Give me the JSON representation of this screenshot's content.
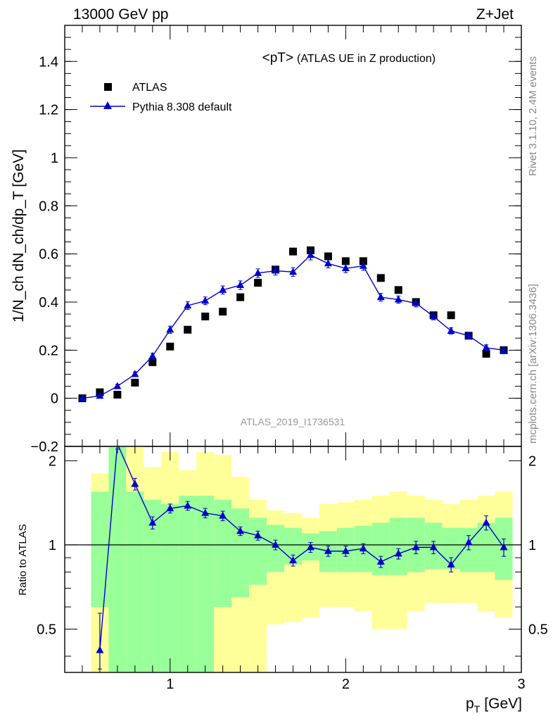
{
  "header": {
    "left": "13000 GeV pp",
    "right": "Z+Jet"
  },
  "side_labels": {
    "rivet": "Rivet 3.1.10,  2.4M events",
    "mcplots": "mcplots.cern.ch [arXiv:1306.3436]"
  },
  "analysis_id": "ATLAS_2019_I1736531",
  "colors": {
    "mc": "#0000cc",
    "band_inner": "#99ff99",
    "band_outer": "#ffff99",
    "data": "#000000"
  },
  "chart_data": [
    {
      "type": "scatter",
      "title_main": "<pT>",
      "title_sub": "(ATLAS UE in Z production)",
      "xlabel": "p",
      "xlabel_sub": "T",
      "xlabel_unit": "[GeV]",
      "ylabel": "1/N_ch dN_ch/dp_T [GeV]",
      "xlim": [
        0.4,
        3.0
      ],
      "ylim": [
        -0.2,
        1.55
      ],
      "yticks": [
        -0.2,
        0,
        0.2,
        0.4,
        0.6,
        0.8,
        1,
        1.2,
        1.4
      ],
      "ytick_labels": [
        "−0.2",
        "0",
        "0.2",
        "0.4",
        "0.6",
        "0.8",
        "1",
        "1.2",
        "1.4"
      ],
      "xticks": [
        1,
        2,
        3
      ],
      "legend_position": "top-left",
      "x": [
        0.5,
        0.6,
        0.7,
        0.8,
        0.9,
        1.0,
        1.1,
        1.2,
        1.3,
        1.4,
        1.5,
        1.6,
        1.7,
        1.8,
        1.9,
        2.0,
        2.1,
        2.2,
        2.3,
        2.4,
        2.5,
        2.6,
        2.7,
        2.8,
        2.9
      ],
      "series": [
        {
          "name": "ATLAS",
          "marker": "square",
          "values": [
            0.0,
            0.025,
            0.015,
            0.065,
            0.15,
            0.215,
            0.285,
            0.34,
            0.36,
            0.42,
            0.48,
            0.535,
            0.61,
            0.615,
            0.59,
            0.57,
            0.57,
            0.5,
            0.45,
            0.4,
            0.345,
            0.345,
            0.26,
            0.185,
            0.2
          ]
        },
        {
          "name": "Pythia 8.308 default",
          "marker": "triangle",
          "values": [
            0.0,
            0.01,
            0.05,
            0.1,
            0.175,
            0.285,
            0.385,
            0.405,
            0.45,
            0.47,
            0.52,
            0.53,
            0.525,
            0.595,
            0.56,
            0.54,
            0.55,
            0.42,
            0.41,
            0.395,
            0.34,
            0.28,
            0.26,
            0.21,
            0.2
          ],
          "errors": [
            0.0,
            0.005,
            0.008,
            0.01,
            0.012,
            0.015,
            0.016,
            0.016,
            0.017,
            0.018,
            0.018,
            0.018,
            0.018,
            0.02,
            0.018,
            0.018,
            0.018,
            0.016,
            0.015,
            0.015,
            0.014,
            0.013,
            0.013,
            0.012,
            0.012
          ]
        }
      ]
    },
    {
      "type": "scatter",
      "ylabel": "Ratio to ATLAS",
      "xlim": [
        0.4,
        3.0
      ],
      "ylim": [
        0.35,
        2.25
      ],
      "yticks": [
        0.5,
        1,
        2
      ],
      "xticks": [
        1,
        2,
        3
      ],
      "reference_line": 1,
      "x_edges": [
        0.55,
        0.65,
        0.75,
        0.85,
        0.95,
        1.05,
        1.15,
        1.25,
        1.35,
        1.45,
        1.55,
        1.65,
        1.75,
        1.85,
        1.95,
        2.05,
        2.15,
        2.25,
        2.35,
        2.45,
        2.55,
        2.65,
        2.75,
        2.85,
        2.95
      ],
      "band_inner_high": [
        1.55,
        2.3,
        1.55,
        1.45,
        1.4,
        1.5,
        1.5,
        1.45,
        1.35,
        1.25,
        1.18,
        1.15,
        1.1,
        1.12,
        1.15,
        1.17,
        1.2,
        1.25,
        1.25,
        1.2,
        1.15,
        1.15,
        1.2,
        1.25
      ],
      "band_inner_low": [
        0.6,
        0.35,
        0.35,
        0.35,
        0.35,
        0.35,
        0.35,
        0.6,
        0.65,
        0.72,
        0.8,
        0.85,
        0.88,
        0.8,
        0.8,
        0.8,
        0.78,
        0.78,
        0.8,
        0.82,
        0.82,
        0.8,
        0.8,
        0.75
      ],
      "band_outer_high": [
        1.8,
        2.3,
        2.3,
        1.9,
        2.15,
        1.85,
        2.15,
        2.1,
        1.75,
        1.45,
        1.33,
        1.3,
        1.25,
        1.4,
        1.42,
        1.45,
        1.5,
        1.55,
        1.5,
        1.45,
        1.4,
        1.45,
        1.5,
        1.55
      ],
      "band_outer_low": [
        0.35,
        0.35,
        0.35,
        0.35,
        0.35,
        0.35,
        0.35,
        0.35,
        0.35,
        0.35,
        0.52,
        0.53,
        0.55,
        0.6,
        0.6,
        0.58,
        0.5,
        0.5,
        0.58,
        0.62,
        0.62,
        0.62,
        0.58,
        0.55
      ],
      "mc_ratio": [
        0.42,
        2.3,
        1.65,
        1.2,
        1.35,
        1.38,
        1.3,
        1.27,
        1.12,
        1.08,
        1.0,
        0.88,
        0.98,
        0.95,
        0.95,
        0.97,
        0.87,
        0.93,
        0.98,
        0.98,
        0.85,
        1.02,
        1.2,
        0.98
      ],
      "mc_ratio_errors": [
        0.15,
        0.1,
        0.08,
        0.06,
        0.05,
        0.05,
        0.05,
        0.05,
        0.04,
        0.04,
        0.04,
        0.04,
        0.04,
        0.04,
        0.04,
        0.04,
        0.04,
        0.04,
        0.05,
        0.05,
        0.05,
        0.06,
        0.07,
        0.07
      ]
    }
  ]
}
